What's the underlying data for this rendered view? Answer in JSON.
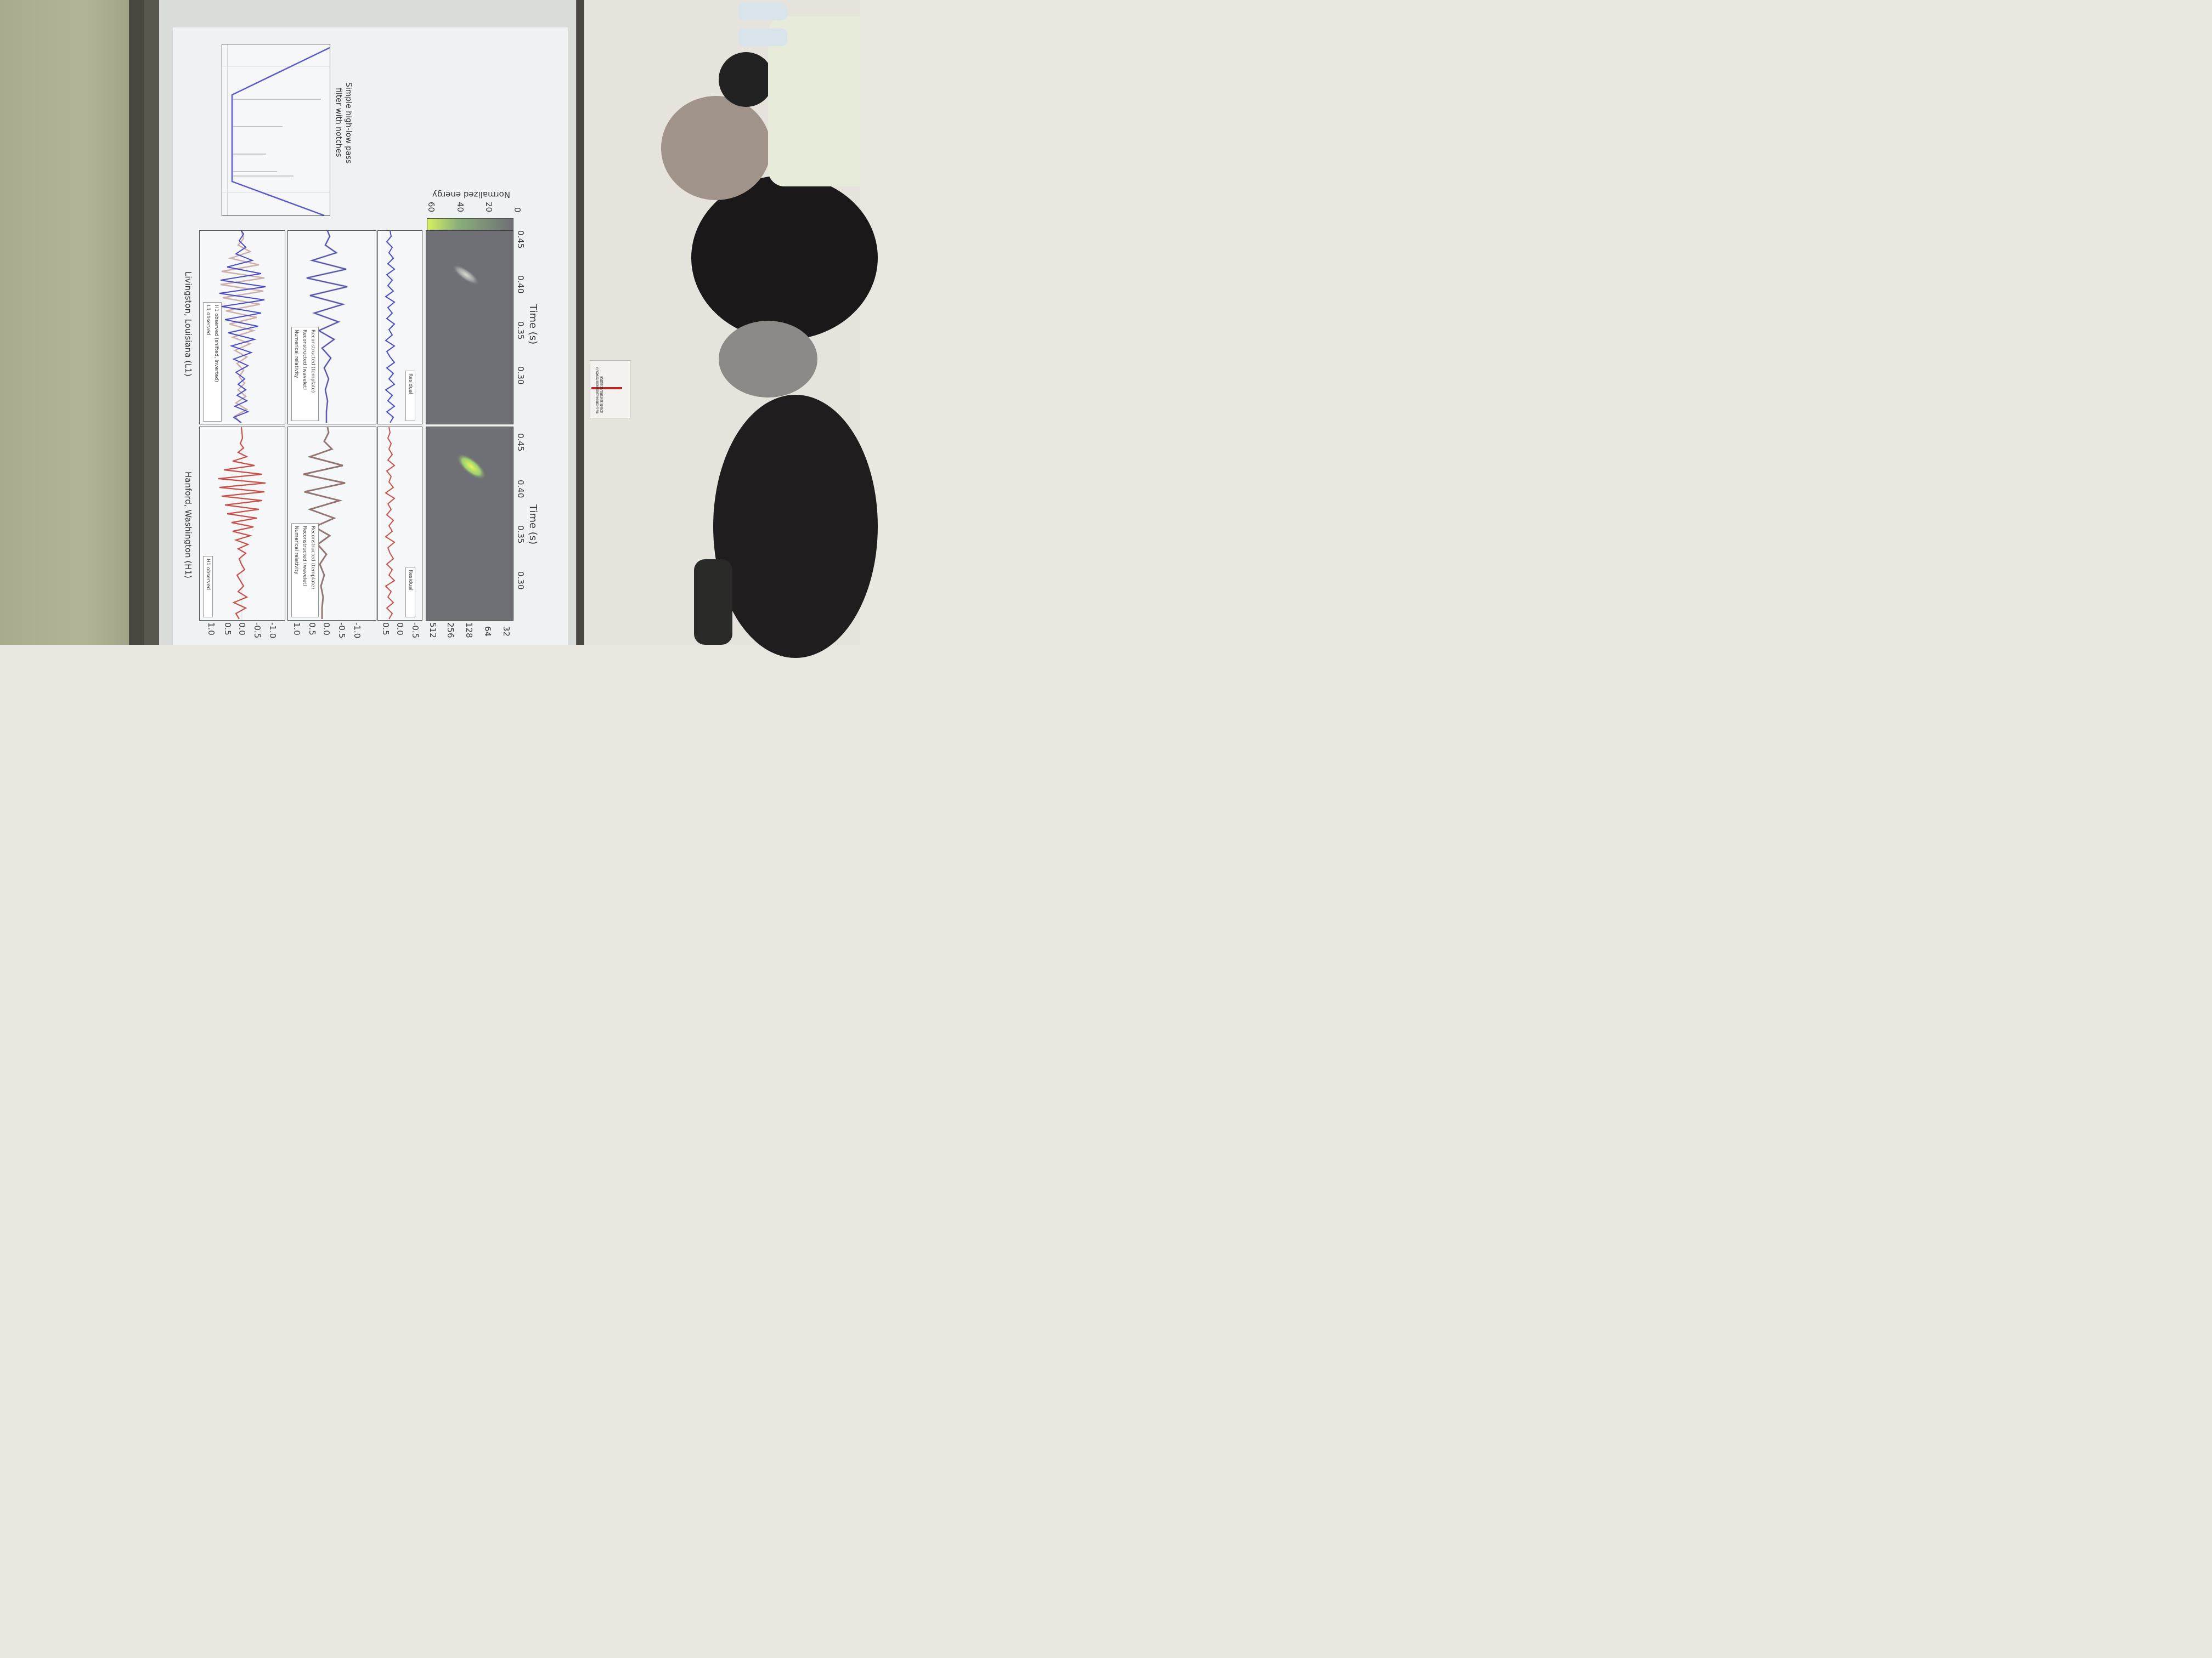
{
  "slide": {
    "title_h1": "Hanford, Washington (H1)",
    "title_l1": "Livingston, Louisiana (L1)",
    "xlabel": "Time (s)",
    "x_ticks": [
      "0.30",
      "0.35",
      "0.40",
      "0.45"
    ],
    "y_ticks_strain": [
      "1.0",
      "0.5",
      "0.0",
      "-0.5",
      "-1.0"
    ],
    "y_ticks_residual": [
      "0.5",
      "0.0",
      "-0.5"
    ],
    "y_ticks_freq": [
      "512",
      "256",
      "128",
      "64",
      "32"
    ],
    "colorbar_ticks": [
      "60",
      "40",
      "20",
      "0"
    ],
    "colorbar_label": "Normalized energy",
    "legend_h1_obs": "H1 observed",
    "legend_l1_obs": "L1 observed",
    "legend_h1_shift": "H1 observed (shifted, inverted)",
    "legend_nr": "Numerical relativity",
    "legend_wavelet": "Reconstructed (wavelet)",
    "legend_template": "Reconstructed (template)",
    "legend_residual": "Residual",
    "filter_caption_1": "Simple high-low pass",
    "filter_caption_2": "filter with notches",
    "colors": {
      "h1": "#c8504a",
      "l1": "#4b4bc8",
      "reconstructed": "#555555",
      "spectrogram_bg": "#6d6d75",
      "chirp": "#d7f060"
    }
  },
  "notice": {
    "text": "禁止在教室内乱贴乱画 请爱护公共设施 如有损坏照价赔偿"
  }
}
